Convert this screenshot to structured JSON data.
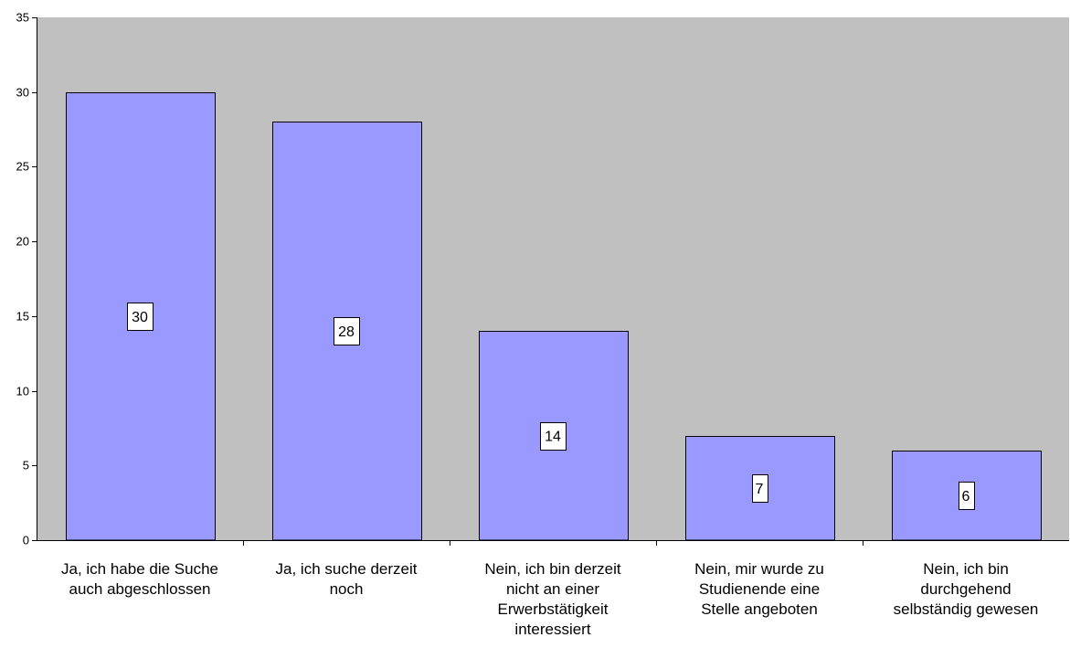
{
  "chart_data": {
    "type": "bar",
    "categories": [
      [
        "Ja, ich habe die Suche",
        "auch abgeschlossen"
      ],
      [
        "Ja, ich suche derzeit",
        "noch"
      ],
      [
        "Nein, ich bin derzeit",
        "nicht an einer",
        "Erwerbstätigkeit",
        "interessiert"
      ],
      [
        "Nein, mir wurde zu",
        "Studienende eine",
        "Stelle angeboten"
      ],
      [
        "Nein, ich bin",
        "durchgehend",
        "selbständig gewesen"
      ]
    ],
    "values": [
      30,
      28,
      14,
      7,
      6
    ],
    "ylim": [
      0,
      35
    ],
    "yticks": [
      0,
      5,
      10,
      15,
      20,
      25,
      30,
      35
    ],
    "grid": false,
    "show_data_labels": true,
    "colors": {
      "plot_bg": "#c0c0c0",
      "bar_fill": "#9999ff",
      "bar_stroke": "#000000",
      "label_bg": "#ffffff"
    }
  }
}
